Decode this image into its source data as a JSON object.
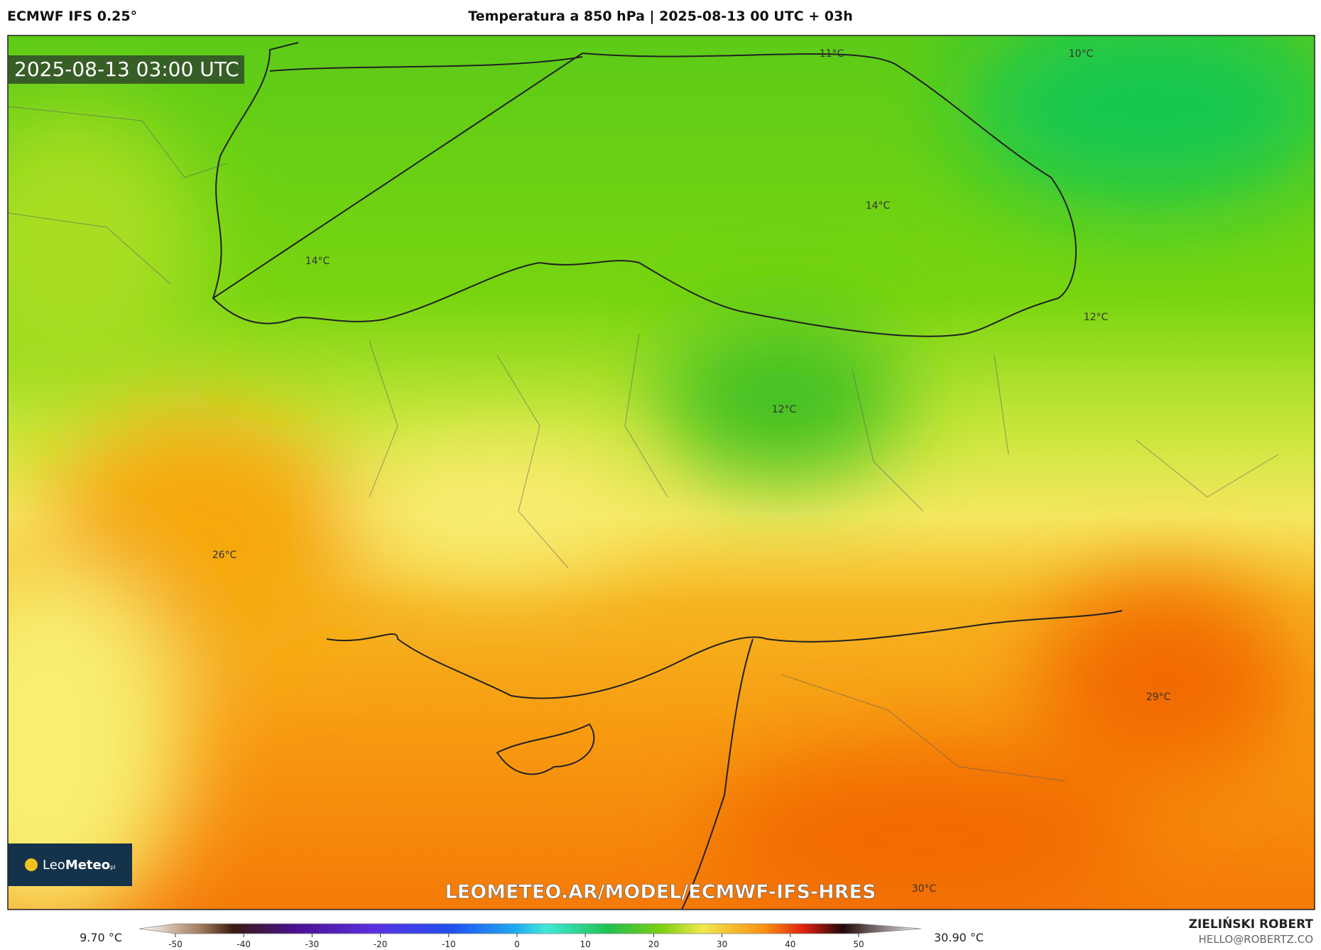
{
  "header": {
    "model": "ECMWF IFS 0.25°",
    "title": "Temperatura a 850 hPa | 2025-08-13 00 UTC + 03h"
  },
  "map": {
    "timestamp": "2025-08-13 03:00 UTC",
    "labels": [
      "11°C",
      "10°C",
      "14°C",
      "14°C",
      "12°C",
      "12°C",
      "26°C",
      "29°C",
      "30°C"
    ],
    "watermark": "LEOMETEO.AR/MODEL/ECMWF-IFS-HRES",
    "logo": {
      "name_a": "Leo",
      "name_b": "Meteo",
      "suffix": "pl"
    }
  },
  "colorbar": {
    "min_label": "9.70 °C",
    "max_label": "30.90 °C",
    "ticks": [
      -50,
      -40,
      -30,
      -20,
      -10,
      0,
      10,
      20,
      30,
      40,
      50
    ]
  },
  "footer": {
    "author": "ZIELIŃSKI ROBERT",
    "email": "HELLO@ROBERTZ.CO"
  }
}
